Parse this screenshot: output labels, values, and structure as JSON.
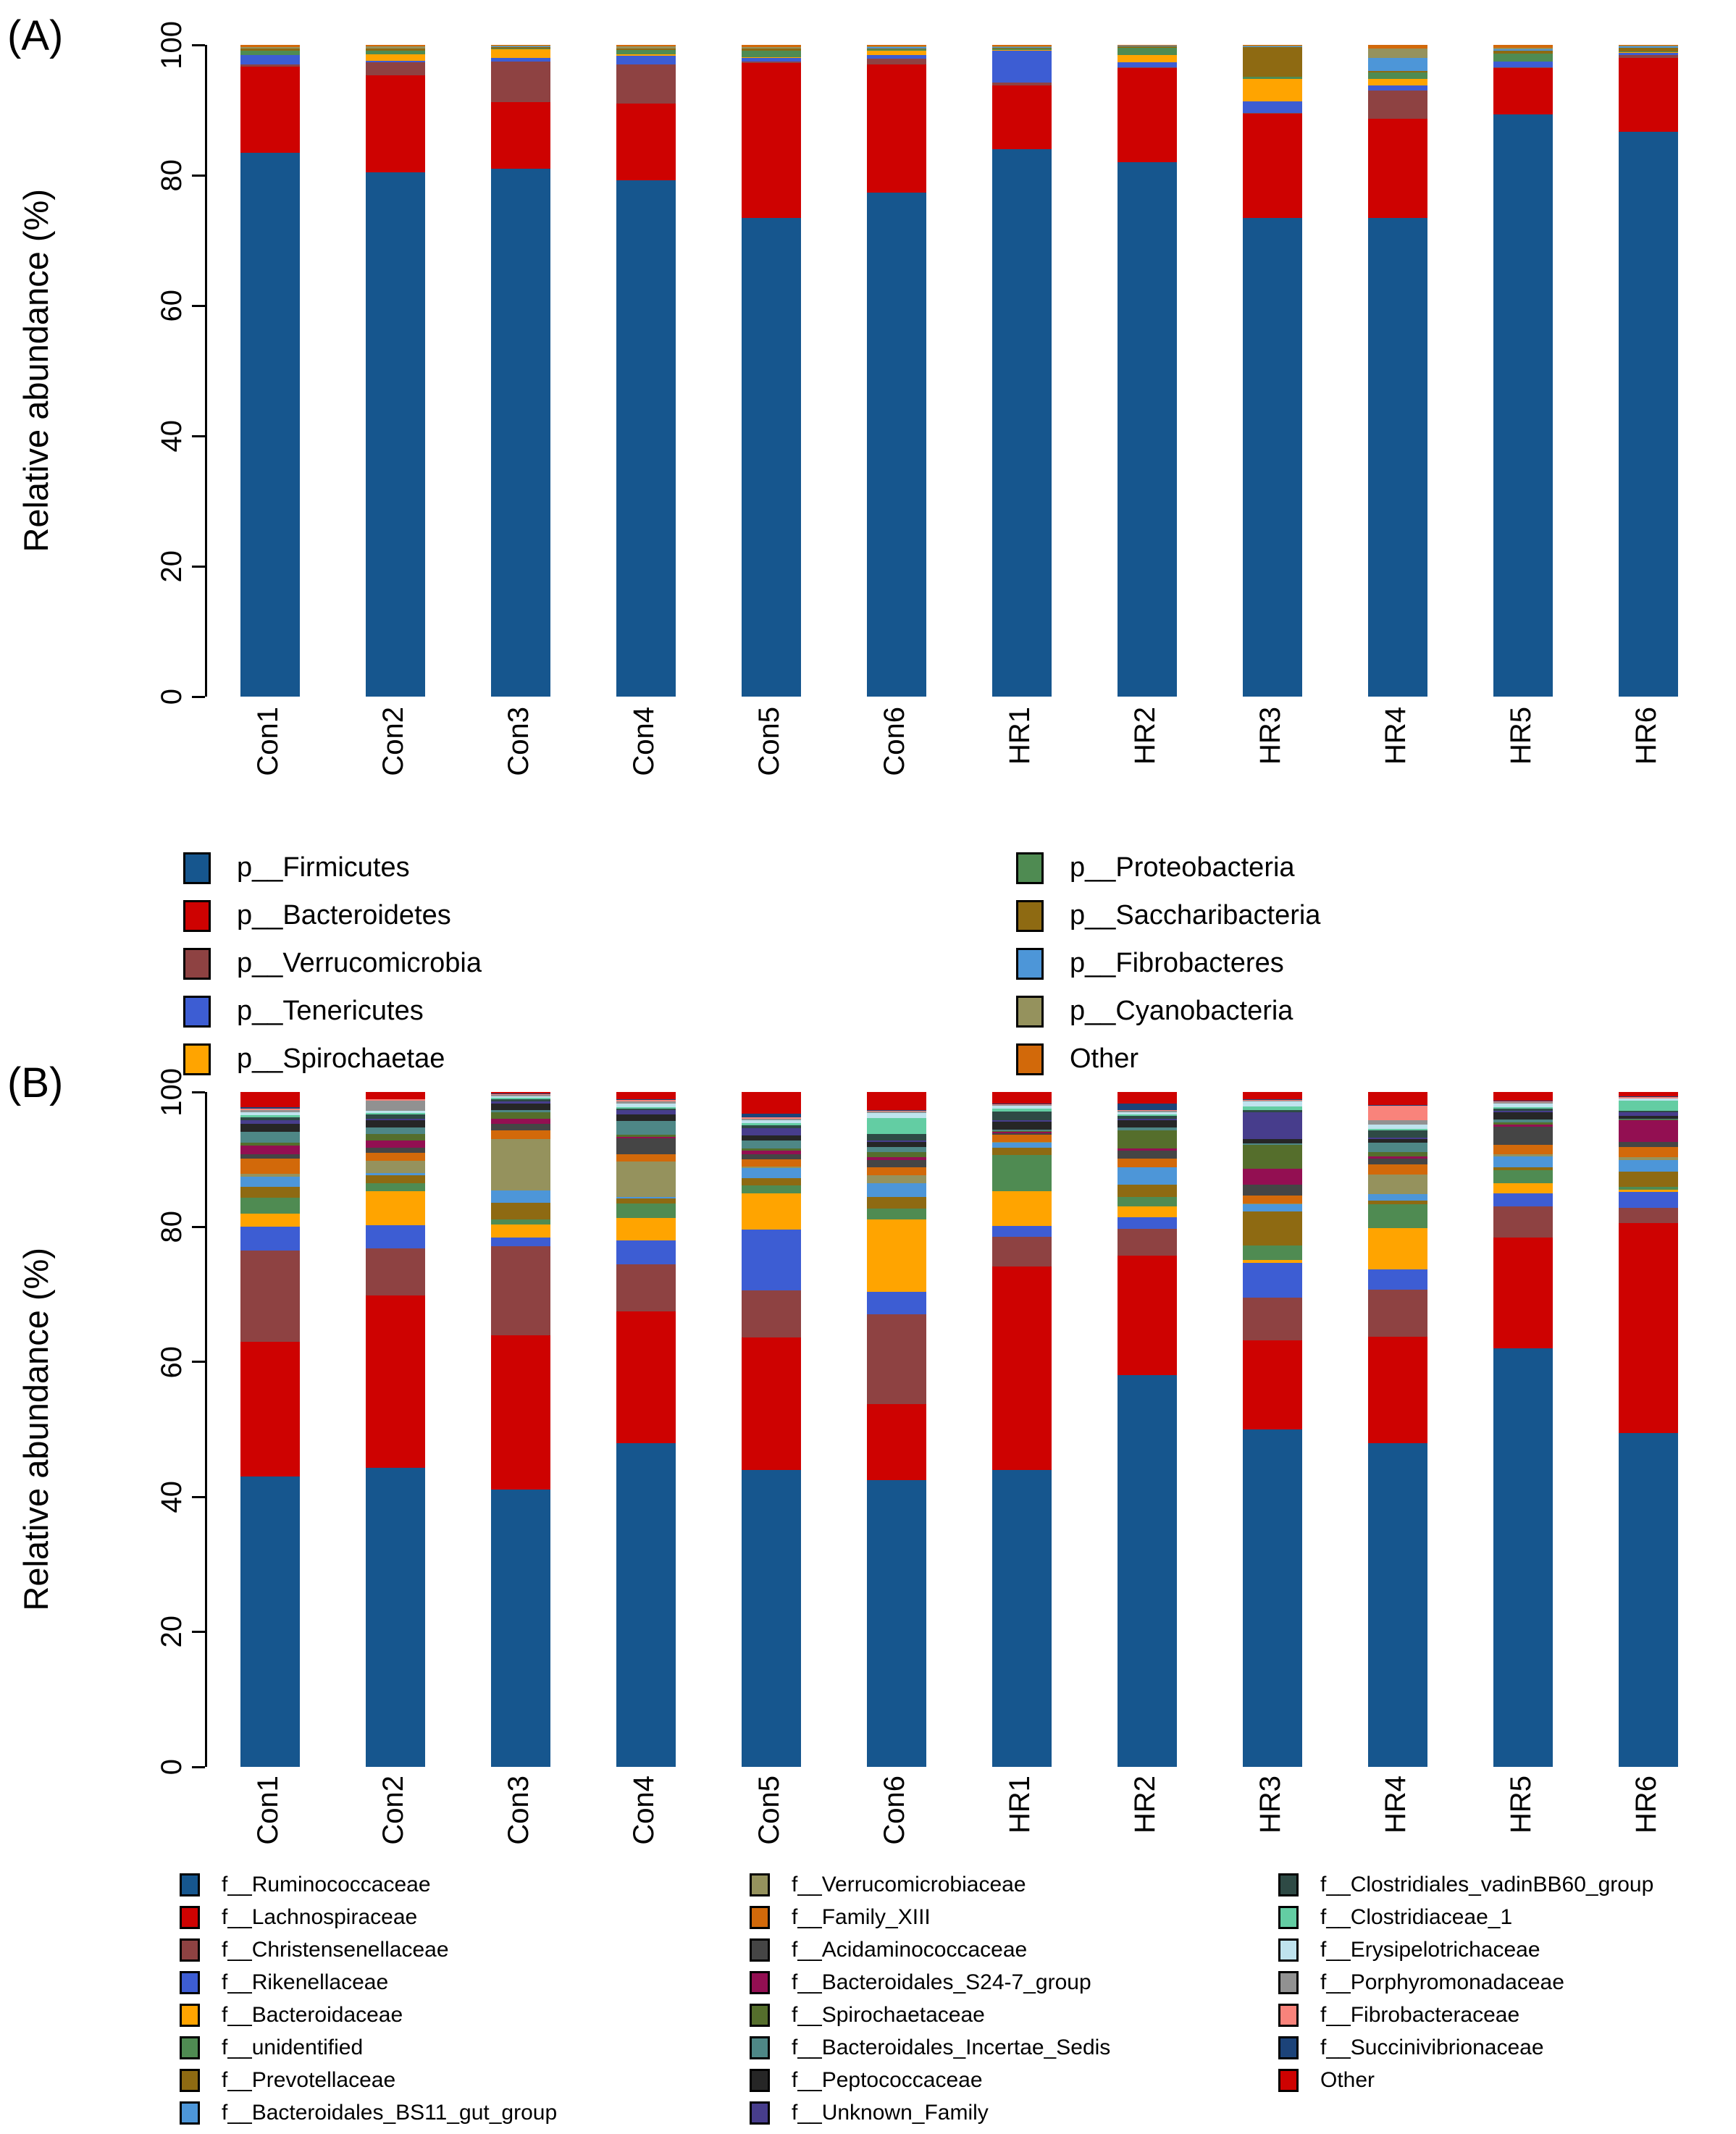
{
  "figure": {
    "background": "#FFFFFF",
    "panel_a_label": "(A)",
    "panel_b_label": "(B)"
  },
  "chart_data": [
    {
      "id": "A",
      "type": "bar",
      "stacked": true,
      "panel_label": "(A)",
      "title": "",
      "xlabel": "",
      "ylabel": "Relative abundance (%)",
      "ylim": [
        0,
        100
      ],
      "grid": false,
      "legend_position": "below plot, two columns",
      "yticks": [
        "0",
        "20",
        "40",
        "60",
        "80",
        "100"
      ],
      "categories": [
        "Con1",
        "Con2",
        "Con3",
        "Con4",
        "Con5",
        "Con6",
        "HR1",
        "HR2",
        "HR3",
        "HR4",
        "HR5",
        "HR6"
      ],
      "series": [
        {
          "name": "p__Firmicutes",
          "color": "#16568E",
          "values": [
            83.5,
            80.5,
            81,
            79.2,
            73.5,
            77.3,
            84,
            82,
            73.5,
            73.5,
            89.3,
            86.7
          ]
        },
        {
          "name": "p__Bacteroidetes",
          "color": "#CE0201",
          "values": [
            13.2,
            14.8,
            10.2,
            11.8,
            23.7,
            19.7,
            9.8,
            14.5,
            16,
            15.2,
            7.2,
            11.3
          ]
        },
        {
          "name": "p__Verrucomicrobia",
          "color": "#8E4242",
          "values": [
            0.3,
            2.0,
            6.3,
            6.0,
            0.2,
            0.9,
            0.4,
            0.1,
            0.1,
            4.3,
            0.1,
            0.5
          ]
        },
        {
          "name": "p__Tenericutes",
          "color": "#3D5DD3",
          "values": [
            1.4,
            0.3,
            0.5,
            1.3,
            0.6,
            0.6,
            4.9,
            0.7,
            1.7,
            0.8,
            0.8,
            0.3
          ]
        },
        {
          "name": "p__Spirochaetae",
          "color": "#FFA400",
          "values": [
            0.1,
            1.0,
            1.3,
            0.3,
            0.1,
            0.6,
            0.1,
            1.1,
            3.5,
            1.0,
            0.1,
            0.1
          ]
        },
        {
          "name": "p__Proteobacteria",
          "color": "#4F8B52",
          "values": [
            0.6,
            0.5,
            0.2,
            0.6,
            1.0,
            0.2,
            0.3,
            1.2,
            0.3,
            1.0,
            1.2,
            0.1
          ]
        },
        {
          "name": "p__Saccharibacteria",
          "color": "#8E6A12",
          "values": [
            0.3,
            0.3,
            0.2,
            0.2,
            0.3,
            0.2,
            0.1,
            0.2,
            4.6,
            0.2,
            0.4,
            0.6
          ]
        },
        {
          "name": "p__Fibrobacteres",
          "color": "#4D96D8",
          "values": [
            0.1,
            0.1,
            0.05,
            0.1,
            0.1,
            0.2,
            0.1,
            0.05,
            0.1,
            2.0,
            0.2,
            0.2
          ]
        },
        {
          "name": "p__Cyanobacteria",
          "color": "#95925D",
          "values": [
            0.2,
            0.3,
            0.15,
            0.3,
            0.2,
            0.1,
            0.1,
            0.05,
            0.1,
            1.5,
            0.3,
            0.1
          ]
        },
        {
          "name": "Other",
          "color": "#D2690A",
          "values": [
            0.3,
            0.2,
            0.1,
            0.2,
            0.3,
            0.2,
            0.2,
            0.1,
            0.1,
            0.5,
            0.4,
            0.1
          ]
        }
      ]
    },
    {
      "id": "B",
      "type": "bar",
      "stacked": true,
      "panel_label": "(B)",
      "title": "",
      "xlabel": "",
      "ylabel": "Relative abundance (%)",
      "ylim": [
        0,
        100
      ],
      "grid": false,
      "legend_position": "below plot, three columns",
      "yticks": [
        "0",
        "20",
        "40",
        "60",
        "80",
        "100"
      ],
      "categories": [
        "Con1",
        "Con2",
        "Con3",
        "Con4",
        "Con5",
        "Con6",
        "HR1",
        "HR2",
        "HR3",
        "HR4",
        "HR5",
        "HR6"
      ],
      "series": [
        {
          "name": "f__Ruminococcaceae",
          "color": "#16568E",
          "values": [
            43,
            44.3,
            41.3,
            48,
            44,
            42.5,
            44,
            58,
            50,
            48,
            62,
            49.5
          ]
        },
        {
          "name": "f__Lachnospiraceae",
          "color": "#CE0201",
          "values": [
            20,
            25.5,
            23,
            19.5,
            19.6,
            11.3,
            30.1,
            17.8,
            13.2,
            15.7,
            16.4,
            31.1
          ]
        },
        {
          "name": "f__Christensenellaceae",
          "color": "#8E4242",
          "values": [
            13.5,
            7,
            13.2,
            7,
            7,
            13.3,
            4.4,
            3.9,
            6.3,
            7,
            4.7,
            2.2
          ]
        },
        {
          "name": "f__Rikenellaceae",
          "color": "#3D5DD3",
          "values": [
            3.5,
            3.5,
            1.3,
            3.5,
            9,
            3.3,
            1.6,
            1.7,
            5.2,
            3,
            1.9,
            2.4
          ]
        },
        {
          "name": "f__Bacteroidaceae",
          "color": "#FFA400",
          "values": [
            2,
            5,
            2,
            3.3,
            5.4,
            10.7,
            5.2,
            1.7,
            0.4,
            6.1,
            1.5,
            0.3
          ]
        },
        {
          "name": "f__unidentified",
          "color": "#4F8B52",
          "values": [
            2.3,
            1.2,
            0.7,
            2.2,
            1.2,
            1.6,
            5.4,
            1.3,
            2.2,
            3.6,
            1.9,
            0.5
          ]
        },
        {
          "name": "f__Prevotellaceae",
          "color": "#8E6A12",
          "values": [
            1.7,
            1.2,
            2.5,
            0.7,
            1,
            1.7,
            1,
            1.9,
            5,
            0.5,
            0.5,
            2.2
          ]
        },
        {
          "name": "f__Bacteroidales_BS11_gut_group",
          "color": "#4D96D8",
          "values": [
            1.5,
            0.3,
            1.8,
            0.3,
            1.5,
            2.1,
            0.8,
            2.5,
            1.1,
            1,
            1.6,
            1.7
          ]
        },
        {
          "name": "f__Verrucomicrobiaceae",
          "color": "#95925D",
          "values": [
            0.4,
            1.8,
            7.7,
            5.2,
            0.3,
            1.2,
            0.1,
            0.1,
            0.1,
            2.9,
            0.3,
            0.5
          ]
        },
        {
          "name": "f__Family_XIII",
          "color": "#D2690A",
          "values": [
            2.2,
            1.2,
            1.3,
            1.1,
            1,
            1.2,
            1.1,
            1.2,
            1.2,
            1.5,
            1.4,
            1.4
          ]
        },
        {
          "name": "f__Acidaminococcaceae",
          "color": "#454545",
          "values": [
            0.7,
            0.8,
            1,
            2.3,
            0.8,
            1,
            0.2,
            1.2,
            1.6,
            0.8,
            2.7,
            0.8
          ]
        },
        {
          "name": "f__Bacteroidales_S24-7_group",
          "color": "#930F52",
          "values": [
            1.3,
            1,
            0.7,
            0.3,
            0.5,
            0.5,
            0.2,
            0.3,
            2.3,
            0.4,
            0.3,
            3.2
          ]
        },
        {
          "name": "f__Spirochaetaceae",
          "color": "#556E2C",
          "values": [
            0.4,
            1,
            1,
            0.3,
            0.3,
            0.7,
            0.1,
            2.7,
            3.6,
            0.6,
            0.3,
            0.1
          ]
        },
        {
          "name": "f__Bacteroidales_Incertae_Sedis",
          "color": "#4E8786",
          "values": [
            1.6,
            1,
            0.3,
            2,
            1.2,
            0.8,
            0.2,
            0.5,
            0.2,
            1.4,
            0.4,
            0.1
          ]
        },
        {
          "name": "f__Peptococcaceae",
          "color": "#262626",
          "values": [
            1.2,
            1,
            1,
            1,
            0.8,
            0.7,
            1.2,
            1,
            0.6,
            0.5,
            1.1,
            0.5
          ]
        },
        {
          "name": "f__Unknown_Family",
          "color": "#473D8C",
          "values": [
            0.5,
            0.2,
            0.3,
            0.6,
            1,
            0.2,
            0.2,
            0.2,
            4,
            0.2,
            0.2,
            0.5
          ]
        },
        {
          "name": "f__Clostridiales_vadinBB60_group",
          "color": "#2E4A45",
          "values": [
            0.5,
            0.7,
            0.3,
            0.3,
            0.5,
            1,
            1.3,
            0.5,
            0.3,
            1.1,
            0.4,
            0.2
          ]
        },
        {
          "name": "f__Clostridiaceae_1",
          "color": "#63CDA3",
          "values": [
            0.3,
            0.2,
            0.2,
            0.2,
            0.3,
            2.4,
            0.4,
            0.2,
            0.6,
            0.2,
            0.2,
            1.5
          ]
        },
        {
          "name": "f__Erysipelotrichaceae",
          "color": "#BFE3EE",
          "values": [
            0.4,
            0.3,
            0.3,
            0.5,
            0.4,
            0.7,
            0.5,
            0.3,
            0.7,
            0.7,
            0.5,
            0.3
          ]
        },
        {
          "name": "f__Porphyromonadaceae",
          "color": "#919191",
          "values": [
            0.3,
            1.5,
            0.2,
            0.3,
            0.3,
            0.2,
            0.1,
            0.2,
            0.1,
            0.6,
            0.2,
            0.1
          ]
        },
        {
          "name": "f__Fibrobacteraceae",
          "color": "#F9837B",
          "values": [
            0.2,
            0.3,
            0.1,
            0.2,
            0.2,
            0.1,
            0.1,
            0.1,
            0.1,
            2.2,
            0.1,
            0.2
          ]
        },
        {
          "name": "f__Succinivibrionaceae",
          "color": "#1C4379",
          "values": [
            0.3,
            0,
            0.1,
            0.2,
            0.5,
            0.1,
            0.1,
            1,
            0.1,
            0.1,
            0.1,
            0.1
          ]
        },
        {
          "name": "Other",
          "color": "#CE0201",
          "values": [
            2.2,
            1.0,
            0.2,
            1.0,
            3.2,
            2.7,
            1.7,
            1.7,
            1.1,
            1.9,
            1.3,
            0.6
          ]
        }
      ]
    }
  ]
}
